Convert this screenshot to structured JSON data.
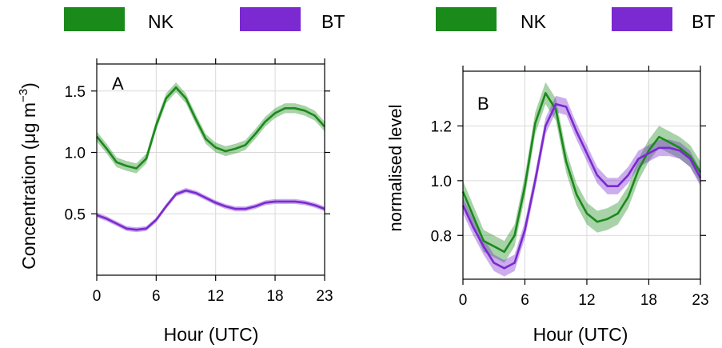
{
  "colors": {
    "nk": "#1a8a1a",
    "bt": "#7a2ad0"
  },
  "chart_data": [
    {
      "type": "line",
      "panel_label": "A",
      "xlabel": "Hour (UTC)",
      "ylabel": "Concentration (μg m⁻³)",
      "ylabel_main": "Concentration (μg m",
      "ylabel_sup": "−3",
      "ylabel_end": ")",
      "xlim": [
        0,
        23
      ],
      "ylim": [
        0.0,
        1.72
      ],
      "xticks": [
        0,
        6,
        12,
        18,
        23
      ],
      "yticks": [
        0.5,
        1.0,
        1.5
      ],
      "ytick_labels": [
        "0.5",
        "1.0",
        "1.5"
      ],
      "legend": [
        {
          "name": "NK",
          "color": "#1a8a1a"
        },
        {
          "name": "BT",
          "color": "#7a2ad0"
        }
      ],
      "x": [
        0,
        1,
        2,
        3,
        4,
        5,
        6,
        7,
        8,
        9,
        10,
        11,
        12,
        13,
        14,
        15,
        16,
        17,
        18,
        19,
        20,
        21,
        22,
        23
      ],
      "series": [
        {
          "name": "NK",
          "color": "#1a8a1a",
          "values": [
            1.13,
            1.03,
            0.92,
            0.89,
            0.87,
            0.95,
            1.22,
            1.44,
            1.53,
            1.44,
            1.27,
            1.11,
            1.04,
            1.01,
            1.03,
            1.06,
            1.15,
            1.25,
            1.32,
            1.36,
            1.36,
            1.34,
            1.3,
            1.21
          ],
          "band": 0.04
        },
        {
          "name": "BT",
          "color": "#7a2ad0",
          "values": [
            0.49,
            0.46,
            0.42,
            0.38,
            0.37,
            0.38,
            0.45,
            0.56,
            0.66,
            0.69,
            0.67,
            0.63,
            0.59,
            0.56,
            0.54,
            0.54,
            0.56,
            0.59,
            0.6,
            0.6,
            0.6,
            0.59,
            0.57,
            0.54
          ],
          "band": 0.02
        }
      ]
    },
    {
      "type": "line",
      "panel_label": "B",
      "xlabel": "Hour (UTC)",
      "ylabel": "normalised level",
      "xlim": [
        0,
        23
      ],
      "ylim": [
        0.64,
        1.4
      ],
      "xticks": [
        0,
        6,
        12,
        18,
        23
      ],
      "yticks": [
        0.8,
        1.0,
        1.2
      ],
      "ytick_labels": [
        "0.8",
        "1.0",
        "1.2"
      ],
      "legend": [
        {
          "name": "NK",
          "color": "#1a8a1a"
        },
        {
          "name": "BT",
          "color": "#7a2ad0"
        }
      ],
      "x": [
        0,
        1,
        2,
        3,
        4,
        5,
        6,
        7,
        8,
        9,
        10,
        11,
        12,
        13,
        14,
        15,
        16,
        17,
        18,
        19,
        20,
        21,
        22,
        23
      ],
      "series": [
        {
          "name": "NK",
          "color": "#1a8a1a",
          "values": [
            0.96,
            0.87,
            0.78,
            0.76,
            0.74,
            0.8,
            0.98,
            1.21,
            1.32,
            1.26,
            1.07,
            0.95,
            0.88,
            0.85,
            0.86,
            0.88,
            0.94,
            1.04,
            1.11,
            1.16,
            1.14,
            1.12,
            1.09,
            1.03
          ],
          "band": 0.04
        },
        {
          "name": "BT",
          "color": "#7a2ad0",
          "values": [
            0.91,
            0.83,
            0.76,
            0.7,
            0.68,
            0.7,
            0.82,
            1.0,
            1.2,
            1.28,
            1.27,
            1.18,
            1.1,
            1.02,
            0.98,
            0.98,
            1.02,
            1.08,
            1.1,
            1.12,
            1.12,
            1.11,
            1.08,
            1.01
          ],
          "band": 0.03
        }
      ]
    }
  ]
}
